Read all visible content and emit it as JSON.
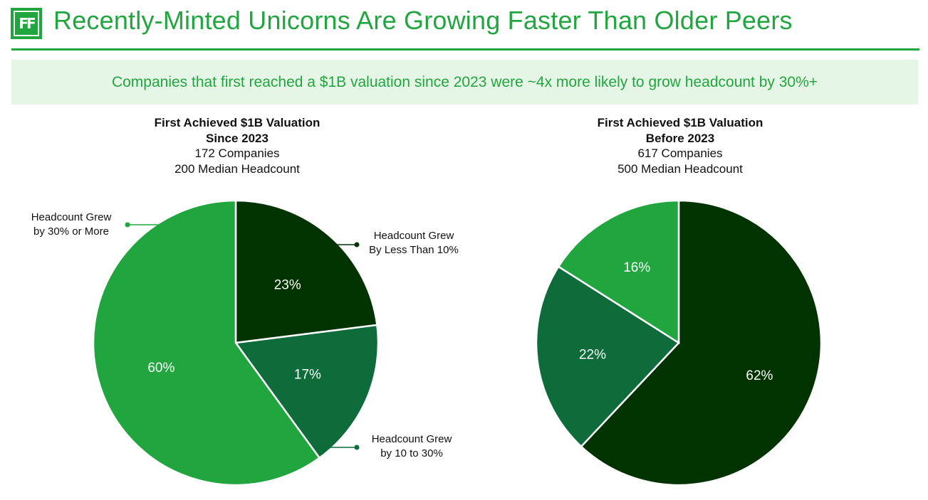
{
  "logo_text": "FF",
  "header": {
    "title": "Recently-Minted Unicorns Are Growing Faster Than Older Peers",
    "subtitle": "Companies that first reached a $1B valuation since 2023 were ~4x more likely to grow headcount by 30%+"
  },
  "colors": {
    "brand": "#21a63f",
    "dark": "#003300",
    "medium": "#0e6b3a",
    "light": "#21a63f"
  },
  "chart_data": [
    {
      "type": "pie",
      "title_line1": "First Achieved $1B Valuation",
      "title_line2": "Since 2023",
      "companies": "172 Companies",
      "median": "200 Median Headcount",
      "categories": [
        "Headcount Grew By Less Than 10%",
        "Headcount Grew by 10 to 30%",
        "Headcount Grew by 30% or More"
      ],
      "values": [
        23,
        17,
        60
      ],
      "labels": [
        "23%",
        "17%",
        "60%"
      ],
      "legend": [
        {
          "line1": "Headcount Grew",
          "line2": "By Less Than 10%"
        },
        {
          "line1": "Headcount Grew",
          "line2": "by 10 to 30%"
        },
        {
          "line1": "Headcount Grew",
          "line2": "by 30% or More"
        }
      ]
    },
    {
      "type": "pie",
      "title_line1": "First Achieved $1B Valuation",
      "title_line2": "Before 2023",
      "companies": "617 Companies",
      "median": "500 Median Headcount",
      "categories": [
        "Headcount Grew By Less Than 10%",
        "Headcount Grew by 10 to 30%",
        "Headcount Grew by 30% or More"
      ],
      "values": [
        62,
        22,
        16
      ],
      "labels": [
        "62%",
        "22%",
        "16%"
      ]
    }
  ]
}
